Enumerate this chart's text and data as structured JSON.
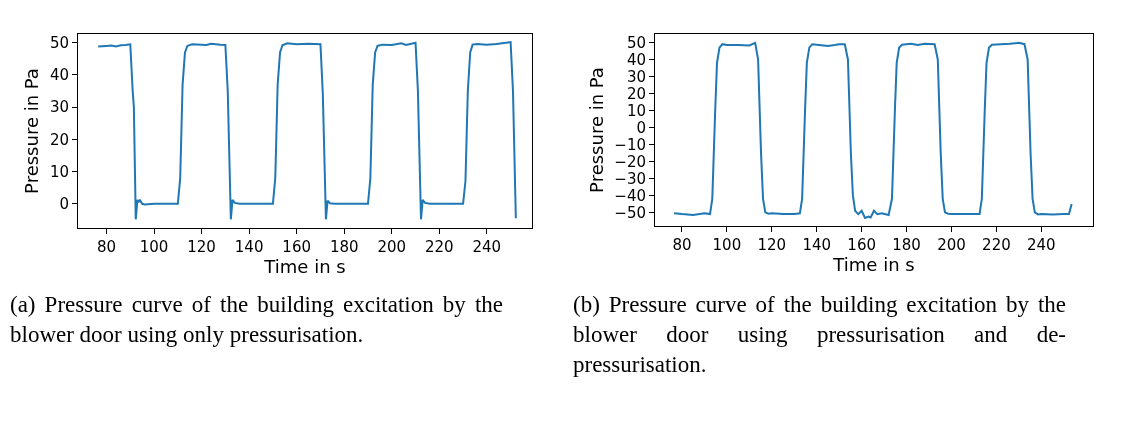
{
  "chart_data": [
    {
      "type": "line",
      "xlabel": "Time in s",
      "ylabel": "Pressure in Pa",
      "xlim": [
        68,
        259
      ],
      "ylim": [
        -7.5,
        52.7
      ],
      "xticks": [
        80,
        100,
        120,
        140,
        160,
        180,
        200,
        220,
        240
      ],
      "yticks": [
        0,
        10,
        20,
        30,
        40,
        50
      ],
      "grid": false,
      "marker": "none",
      "line_style": "solid",
      "series": [
        {
          "color": "#1f77b4",
          "x": [
            76.5,
            78,
            80,
            82,
            84,
            86,
            88,
            90,
            91,
            91.5,
            92.3,
            93,
            93.5,
            94,
            95,
            96,
            100,
            105,
            110,
            111,
            112,
            113,
            114,
            116,
            120,
            122,
            124,
            128,
            130,
            131,
            132.3,
            133,
            134,
            136,
            140,
            145,
            150,
            151,
            152,
            153,
            154,
            156,
            160,
            165,
            170,
            171,
            172.3,
            173,
            174,
            176,
            180,
            185,
            190,
            191,
            192,
            193,
            194,
            196,
            200,
            204,
            206,
            210,
            211,
            212.3,
            213,
            214,
            216,
            220,
            225,
            230,
            231,
            232,
            233,
            234,
            236,
            240,
            244,
            250,
            251,
            252.2
          ],
          "values": [
            48.8,
            48.9,
            49.0,
            49.1,
            48.8,
            49.2,
            49.3,
            49.5,
            35,
            30,
            -4.8,
            1.2,
            0.5,
            1.3,
            0,
            -0.2,
            0,
            0,
            0,
            8,
            37,
            47,
            49,
            49.5,
            49.4,
            49.3,
            49.7,
            49.4,
            49.3,
            35,
            -4.8,
            1.2,
            0.3,
            0,
            0,
            0,
            0,
            8,
            37,
            47,
            49.2,
            49.8,
            49.5,
            49.7,
            49.5,
            34,
            -4.8,
            1,
            0.2,
            0,
            0,
            0,
            0,
            8,
            37,
            47,
            49,
            49.4,
            49.3,
            49.8,
            49.3,
            50,
            35,
            -4.8,
            1.2,
            0.3,
            0,
            0,
            0,
            0,
            7,
            35,
            47,
            49.4,
            49.6,
            49.4,
            49.6,
            50.2,
            35,
            -4.5
          ]
        }
      ],
      "annotations": [
        "(a) Pressure curve of the building excitation by the blower door using only pressurisation."
      ]
    },
    {
      "type": "line",
      "xlabel": "Time in s",
      "ylabel": "Pressure in Pa",
      "xlim": [
        68,
        263
      ],
      "ylim": [
        -58,
        55
      ],
      "xticks": [
        80,
        100,
        120,
        140,
        160,
        180,
        200,
        220,
        240
      ],
      "yticks": [
        -50,
        -40,
        -30,
        -20,
        -10,
        0,
        10,
        20,
        30,
        40,
        50
      ],
      "grid": false,
      "marker": "none",
      "line_style": "solid",
      "series": [
        {
          "color": "#1f77b4",
          "x": [
            76.5,
            80,
            85,
            90,
            92.5,
            93.5,
            94.8,
            95.6,
            96.7,
            98,
            100,
            105,
            110,
            112.6,
            113.9,
            115.2,
            116.1,
            117.1,
            118.5,
            120,
            125,
            130,
            132.5,
            133.5,
            134.8,
            135.6,
            136.7,
            138,
            140,
            145,
            148,
            150,
            152.5,
            153.9,
            155.2,
            156.1,
            157.1,
            158.5,
            160,
            161.5,
            163,
            164,
            165.5,
            167,
            169,
            172,
            173.5,
            174.8,
            175.6,
            176.7,
            178,
            182,
            185,
            188,
            192.5,
            193.9,
            195.2,
            196.1,
            197.1,
            198.5,
            200,
            205,
            210,
            212.5,
            213.5,
            214.8,
            215.6,
            216.7,
            218,
            222,
            226,
            230,
            232.5,
            233.9,
            235.2,
            236.1,
            237.1,
            238.5,
            240,
            245,
            250,
            252.3,
            253.5
          ],
          "values": [
            -50.5,
            -51,
            -51.5,
            -50.5,
            -51,
            -42,
            10,
            38,
            47,
            49,
            48.5,
            48.5,
            48.3,
            49.8,
            40,
            -15,
            -42,
            -50,
            -50.8,
            -50.5,
            -51,
            -51,
            -50.5,
            -42,
            10,
            38,
            47,
            49,
            48.7,
            48,
            48.5,
            49,
            49,
            40,
            -15,
            -40,
            -49,
            -51,
            -49,
            -53.3,
            -52.5,
            -53,
            -49,
            -51,
            -50.5,
            -51.5,
            -42,
            10,
            38,
            47,
            48.7,
            49.3,
            48.5,
            49.2,
            49,
            40,
            -15,
            -42,
            -50,
            -50.8,
            -51,
            -51,
            -51,
            -51,
            -42,
            10,
            38,
            47,
            48.7,
            49,
            49.2,
            49.8,
            49,
            40,
            -15,
            -42,
            -50,
            -51.2,
            -51,
            -51.3,
            -51,
            -51,
            -45
          ]
        }
      ],
      "annotations": [
        "(b) Pressure curve of the building excitation by the blower door using pressurisation and de-pressurisation."
      ]
    }
  ]
}
